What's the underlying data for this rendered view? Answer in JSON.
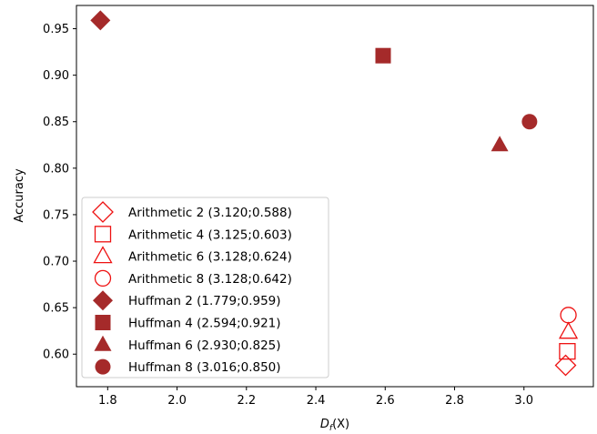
{
  "chart_data": {
    "type": "scatter",
    "xlabel_main": "D",
    "xlabel_sub": "f",
    "xlabel_arg": "(X)",
    "ylabel": "Accuracy",
    "xlim": [
      1.71,
      3.2
    ],
    "ylim": [
      0.565,
      0.975
    ],
    "x_ticks": [
      1.8,
      2.0,
      2.2,
      2.4,
      2.6,
      2.8,
      3.0
    ],
    "x_tick_labels": [
      "1.8",
      "2.0",
      "2.2",
      "2.4",
      "2.6",
      "2.8",
      "3.0"
    ],
    "y_ticks": [
      0.6,
      0.65,
      0.7,
      0.75,
      0.8,
      0.85,
      0.9,
      0.95
    ],
    "y_tick_labels": [
      "0.60",
      "0.65",
      "0.70",
      "0.75",
      "0.80",
      "0.85",
      "0.90",
      "0.95"
    ],
    "grid": false,
    "legend_position": "lower-left",
    "series": [
      {
        "name": "Arithmetic 2 (3.120;0.588)",
        "marker": "diamond",
        "filled": false,
        "color": "#ee1111",
        "x": 3.12,
        "y": 0.588
      },
      {
        "name": "Arithmetic 4 (3.125;0.603)",
        "marker": "square",
        "filled": false,
        "color": "#ee1111",
        "x": 3.125,
        "y": 0.603
      },
      {
        "name": "Arithmetic 6 (3.128;0.624)",
        "marker": "triangle",
        "filled": false,
        "color": "#ee1111",
        "x": 3.128,
        "y": 0.624
      },
      {
        "name": "Arithmetic 8 (3.128;0.642)",
        "marker": "circle",
        "filled": false,
        "color": "#ee1111",
        "x": 3.128,
        "y": 0.642
      },
      {
        "name": "Huffman 2 (1.779;0.959)",
        "marker": "diamond",
        "filled": true,
        "color": "#a52a2a",
        "x": 1.779,
        "y": 0.959
      },
      {
        "name": "Huffman 4 (2.594;0.921)",
        "marker": "square",
        "filled": true,
        "color": "#a52a2a",
        "x": 2.594,
        "y": 0.921
      },
      {
        "name": "Huffman 6 (2.930;0.825)",
        "marker": "triangle",
        "filled": true,
        "color": "#a52a2a",
        "x": 2.93,
        "y": 0.825
      },
      {
        "name": "Huffman 8 (3.016;0.850)",
        "marker": "circle",
        "filled": true,
        "color": "#a52a2a",
        "x": 3.016,
        "y": 0.85
      }
    ]
  }
}
